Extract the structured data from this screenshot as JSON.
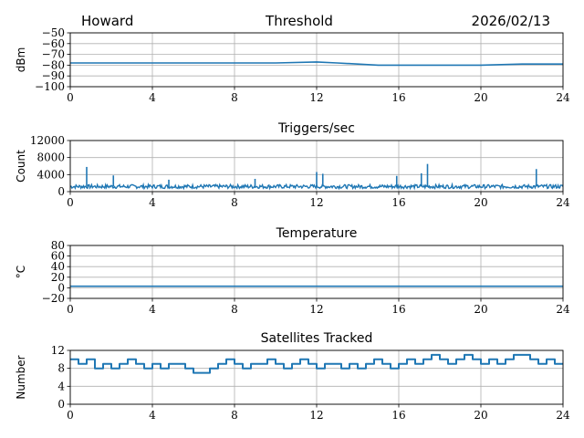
{
  "header": {
    "left": "Howard",
    "center": "Threshold",
    "right": "2026/02/13"
  },
  "line_color": "#1f77b4",
  "chart_data": [
    {
      "type": "line",
      "title": "",
      "xlabel": "",
      "ylabel": "dBm",
      "xlim": [
        0,
        24
      ],
      "ylim": [
        -100,
        -50
      ],
      "xticks": [
        "0",
        "4",
        "8",
        "12",
        "16",
        "20",
        "24"
      ],
      "yticks": [
        "−100",
        "−90",
        "−80",
        "−70",
        "−60",
        "−50"
      ],
      "grid": true,
      "series": [
        {
          "x": [
            0,
            2,
            4,
            6,
            8,
            10,
            12,
            13,
            14,
            15,
            16,
            18,
            20,
            22,
            24
          ],
          "values": [
            -78,
            -78,
            -78,
            -78,
            -78,
            -78,
            -77,
            -78,
            -79,
            -80,
            -80,
            -80,
            -80,
            -79,
            -79
          ]
        }
      ]
    },
    {
      "type": "line",
      "title": "Triggers/sec",
      "xlabel": "",
      "ylabel": "Count",
      "xlim": [
        0,
        24
      ],
      "ylim": [
        0,
        12000
      ],
      "xticks": [
        "0",
        "4",
        "8",
        "12",
        "16",
        "20",
        "24"
      ],
      "yticks": [
        "0",
        "4000",
        "8000",
        "12000"
      ],
      "grid": true,
      "baseline": 1200,
      "spikes": [
        {
          "x": 0.8,
          "y": 5800
        },
        {
          "x": 2.1,
          "y": 3800
        },
        {
          "x": 4.8,
          "y": 2800
        },
        {
          "x": 9.0,
          "y": 3000
        },
        {
          "x": 12.0,
          "y": 4600
        },
        {
          "x": 12.3,
          "y": 4200
        },
        {
          "x": 15.9,
          "y": 3700
        },
        {
          "x": 17.1,
          "y": 4300
        },
        {
          "x": 17.4,
          "y": 6500
        },
        {
          "x": 22.7,
          "y": 5300
        }
      ]
    },
    {
      "type": "line",
      "title": "Temperature",
      "xlabel": "",
      "ylabel": "°C",
      "xlim": [
        0,
        24
      ],
      "ylim": [
        -20,
        80
      ],
      "xticks": [
        "0",
        "4",
        "8",
        "12",
        "16",
        "20",
        "24"
      ],
      "yticks": [
        "−20",
        "0",
        "20",
        "40",
        "60",
        "80"
      ],
      "grid": true,
      "series": [
        {
          "x": [
            0,
            24
          ],
          "values": [
            3,
            3
          ]
        }
      ]
    },
    {
      "type": "line",
      "title": "Satellites Tracked",
      "xlabel": "",
      "ylabel": "Number",
      "xlim": [
        0,
        24
      ],
      "ylim": [
        0,
        12
      ],
      "xticks": [
        "0",
        "4",
        "8",
        "12",
        "16",
        "20",
        "24"
      ],
      "yticks": [
        "0",
        "4",
        "8",
        "12"
      ],
      "grid": true,
      "series": [
        {
          "x": [
            0,
            0.4,
            0.8,
            1.2,
            1.6,
            2.0,
            2.4,
            2.8,
            3.2,
            3.6,
            4.0,
            4.4,
            4.8,
            5.2,
            5.6,
            6.0,
            6.4,
            6.8,
            7.2,
            7.6,
            8.0,
            8.4,
            8.8,
            9.2,
            9.6,
            10.0,
            10.4,
            10.8,
            11.2,
            11.6,
            12.0,
            12.4,
            12.8,
            13.2,
            13.6,
            14.0,
            14.4,
            14.8,
            15.2,
            15.6,
            16.0,
            16.4,
            16.8,
            17.2,
            17.6,
            18.0,
            18.4,
            18.8,
            19.2,
            19.6,
            20.0,
            20.4,
            20.8,
            21.2,
            21.6,
            22.0,
            22.4,
            22.8,
            23.2,
            23.6,
            24.0
          ],
          "values": [
            10,
            9,
            10,
            8,
            9,
            8,
            9,
            10,
            9,
            8,
            9,
            8,
            9,
            9,
            8,
            7,
            7,
            8,
            9,
            10,
            9,
            8,
            9,
            9,
            10,
            9,
            8,
            9,
            10,
            9,
            8,
            9,
            9,
            8,
            9,
            8,
            9,
            10,
            9,
            8,
            9,
            10,
            9,
            10,
            11,
            10,
            9,
            10,
            11,
            10,
            9,
            10,
            9,
            10,
            11,
            11,
            10,
            9,
            10,
            9,
            9
          ]
        }
      ]
    }
  ]
}
